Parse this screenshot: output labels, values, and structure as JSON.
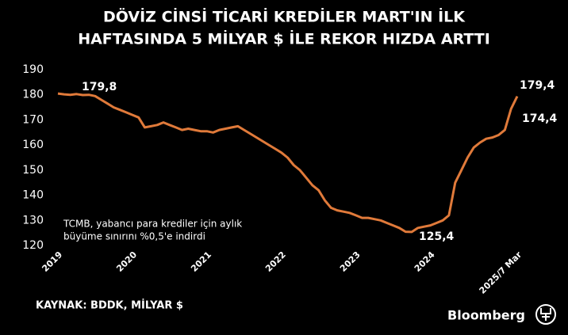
{
  "chart_data": {
    "type": "line",
    "title": [
      "DÖVİZ CİNSİ TİCARİ KREDİLER MART'IN İLK",
      "HAFTASINDA 5 MİLYAR $ İLE REKOR HIZDA ARTTI"
    ],
    "categories": [
      "2019",
      null,
      null,
      null,
      null,
      null,
      null,
      null,
      null,
      null,
      null,
      null,
      "2020",
      null,
      null,
      null,
      null,
      null,
      null,
      null,
      null,
      null,
      null,
      null,
      "2021",
      null,
      null,
      null,
      null,
      null,
      null,
      null,
      null,
      null,
      null,
      null,
      "2022",
      null,
      null,
      null,
      null,
      null,
      null,
      null,
      null,
      null,
      null,
      null,
      "2023",
      null,
      null,
      null,
      null,
      null,
      null,
      null,
      null,
      null,
      null,
      null,
      "2024",
      null,
      null,
      null,
      null,
      null,
      null,
      null,
      null,
      null,
      null,
      null,
      null,
      null,
      "2025/7 Mar"
    ],
    "series": [
      {
        "name": "Döviz cinsi ticari krediler",
        "color": "#e07a3a",
        "values": [
          180.5,
          180.2,
          180,
          180.3,
          179.9,
          180,
          179.5,
          178,
          176.5,
          175,
          174,
          173,
          172,
          171,
          167,
          167.5,
          168,
          169,
          168,
          167,
          166,
          166.5,
          166,
          165.5,
          165.5,
          165,
          166,
          166.5,
          167,
          167.5,
          166,
          164.5,
          163,
          161.5,
          160,
          158.5,
          157,
          155,
          152,
          150,
          147,
          144,
          142,
          138,
          135,
          134,
          133.5,
          133,
          132,
          131,
          131,
          130.5,
          130,
          129,
          128,
          127,
          125.5,
          125.4,
          127,
          127.5,
          128,
          129,
          130,
          132,
          145,
          150,
          155,
          159,
          161,
          162.5,
          163,
          164,
          166,
          174.4,
          179.4
        ]
      }
    ],
    "ylim": [
      120,
      190
    ],
    "yticks": [
      120,
      130,
      140,
      150,
      160,
      170,
      180,
      190
    ],
    "annotations": [
      "179,8",
      "179,4",
      "174,4",
      "125,4"
    ],
    "note": [
      "TCMB, yabancı para krediler için aylık",
      "büyüme sınırını %0,5'e indirdi"
    ],
    "source": "KAYNAK: BDDK, MİLYAR $",
    "brand": "Bloomberg"
  }
}
